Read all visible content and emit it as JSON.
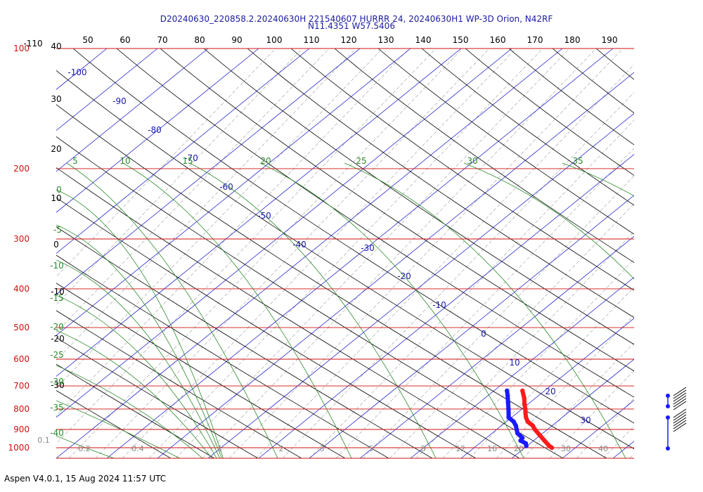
{
  "header": {
    "title_line1": "D20240630_220858.2.20240630H 221540607 HURRR 24, 20240630H1 WP-3D Orion, N42RF",
    "title_line2": "N11.4351 W57.5406"
  },
  "footer": {
    "text": "Aspen V4.0.1, 15 Aug 2024  11:57 UTC"
  },
  "chart_data": {
    "type": "line",
    "title": "D20240630_220858.2.20240630H 221540607 HURRR 24, 20240630H1 WP-3D Orion, N42RF",
    "subtitle": "N11.4351 W57.5406",
    "pressure_ticks": [
      "100",
      "200",
      "300",
      "400",
      "500",
      "600",
      "700",
      "800",
      "900",
      "1000"
    ],
    "top_temperature_ticks": [
      "50",
      "60",
      "70",
      "80",
      "90",
      "100",
      "110",
      "120",
      "130",
      "140",
      "150",
      "160",
      "170",
      "180",
      "190"
    ],
    "left_temperature_labels": [
      "-110",
      "40",
      "30",
      "20",
      "10",
      "0",
      "-10",
      "-20",
      "-30"
    ],
    "dry_adiabat_labels": [
      "-100",
      "-90",
      "-80",
      "-70",
      "-60",
      "-50",
      "-40",
      "-30",
      "-20",
      "-10",
      "0",
      "10",
      "20",
      "30"
    ],
    "moist_adiabat_labels": [
      "5",
      "10",
      "15",
      "20",
      "25",
      "30",
      "35",
      "0",
      "-5",
      "-10",
      "-15",
      "-20",
      "-25",
      "-30",
      "-35",
      "-40"
    ],
    "mixing_ratio_labels": [
      "0.1",
      "0.2",
      "0.4",
      "1",
      "2",
      "3",
      "5",
      "8",
      "12",
      "16",
      "20",
      "30",
      "40"
    ],
    "series": [
      {
        "name": "",
        "color": "#ff1a1a",
        "points": [
          [
            720,
            -3.5
          ],
          [
            750,
            -2.5
          ],
          [
            780,
            -2
          ],
          [
            800,
            -1.5
          ],
          [
            820,
            -1.2
          ],
          [
            840,
            -0.8
          ],
          [
            860,
            0
          ],
          [
            880,
            2
          ],
          [
            900,
            3
          ],
          [
            930,
            5
          ],
          [
            960,
            7
          ],
          [
            990,
            9
          ],
          [
            1000,
            10
          ]
        ]
      },
      {
        "name": "",
        "color": "#1a1aff",
        "points": [
          [
            720,
            -9
          ],
          [
            740,
            -8.5
          ],
          [
            770,
            -8
          ],
          [
            800,
            -7.5
          ],
          [
            820,
            -7.2
          ],
          [
            840,
            -7
          ],
          [
            860,
            -5
          ],
          [
            880,
            -4
          ],
          [
            900,
            -3.5
          ],
          [
            920,
            -3
          ],
          [
            945,
            -1
          ],
          [
            960,
            -1.5
          ],
          [
            975,
            0.5
          ],
          [
            990,
            0.8
          ]
        ]
      }
    ],
    "blue_dry_adiabat_label_at_p": {
      "text": "10",
      "p": 640
    },
    "grid": true
  },
  "wind_barbs": {
    "icon": "wind-barb-icon",
    "count": 2
  }
}
